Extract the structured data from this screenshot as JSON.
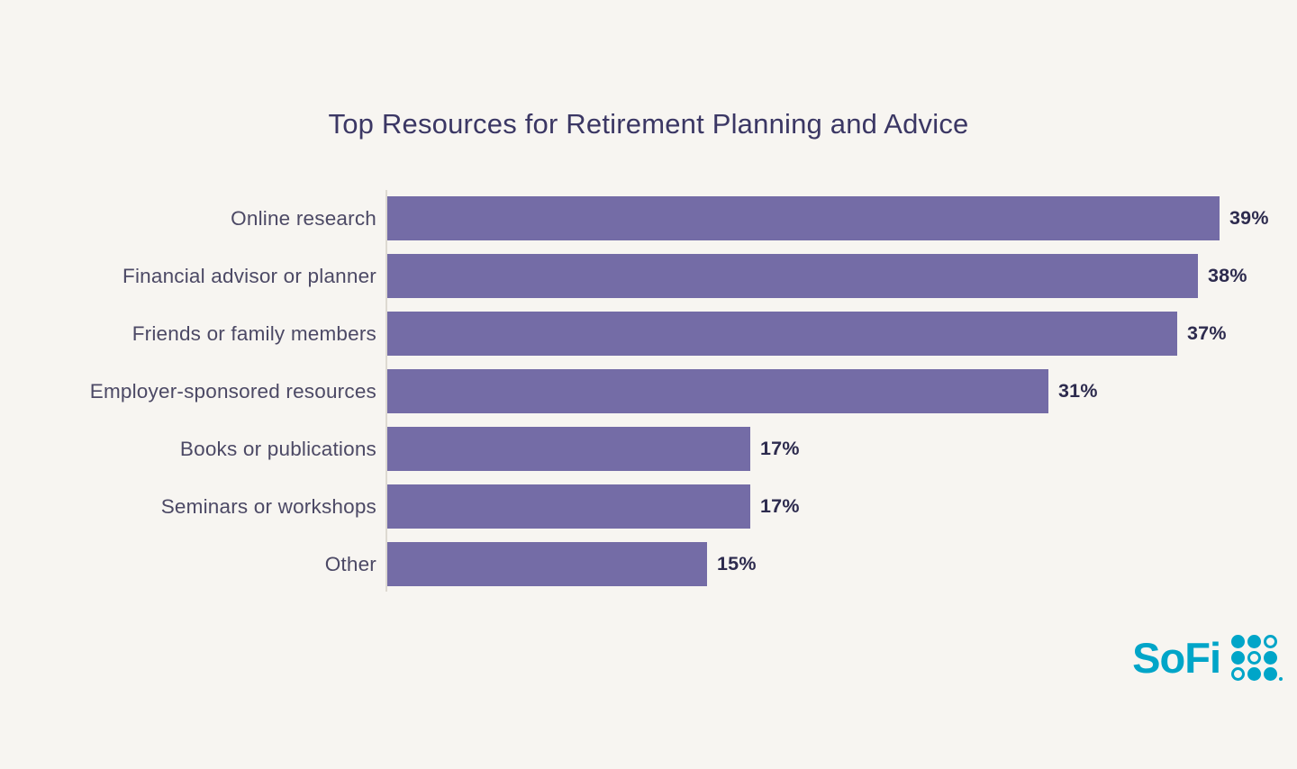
{
  "background_color": "#F7F5F1",
  "chart_data": {
    "type": "bar",
    "orientation": "horizontal",
    "title": "Top Resources for Retirement Planning and Advice",
    "categories": [
      "Online research",
      "Financial advisor or planner",
      "Friends or family members",
      "Employer-sponsored resources",
      "Books or publications",
      "Seminars or workshops",
      "Other"
    ],
    "values": [
      39,
      38,
      37,
      31,
      17,
      17,
      15
    ],
    "value_labels": [
      "39%",
      "38%",
      "37%",
      "31%",
      "17%",
      "17%",
      "15%"
    ],
    "xlabel": "",
    "ylabel": "",
    "axis_max": 39,
    "grid": false,
    "legend": false,
    "bar_color": "#746CA6",
    "title_color": "#3B3764",
    "category_label_color": "#4C4965",
    "value_label_color": "#2D2B4E",
    "axis_line_color": "#DDD9D1"
  },
  "logo": {
    "text": "SoFi",
    "color": "#00A5C8",
    "dots_pattern": [
      [
        "filled",
        "filled",
        "hollow"
      ],
      [
        "filled",
        "hollow",
        "filled"
      ],
      [
        "hollow",
        "filled",
        "filled"
      ]
    ]
  }
}
